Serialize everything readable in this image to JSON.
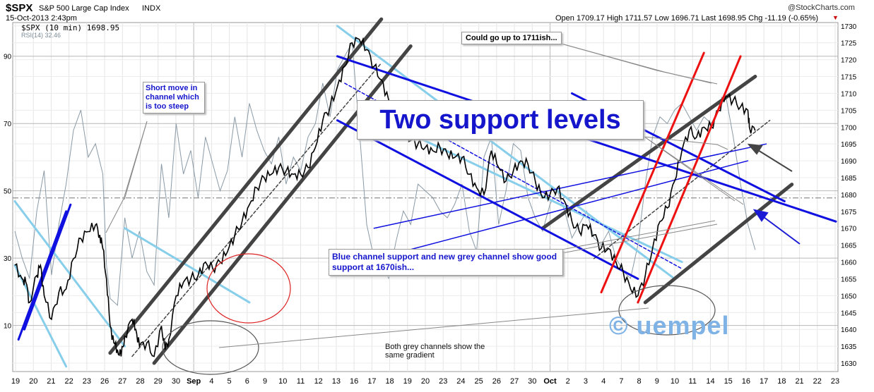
{
  "header": {
    "symbol": "$SPX",
    "name": "S&P 500 Large Cap Index",
    "exchange": "INDX",
    "datetime": "15-Oct-2013 2:43pm",
    "copyright": "@StockCharts.com",
    "quote_line": "Open 1709.17 High 1711.57 Low 1696.71 Last 1698.95 Chg -11.19 (-0.65%)",
    "legend_price": "$SPX (10 min) 1698.95",
    "legend_rsi": "RSI(14) 32.46"
  },
  "annotations": {
    "title_box": "Two support levels",
    "short_move": "Short move in channel which is too steep",
    "could_go": "Could go up to 1711ish...",
    "blue_channel_support": "Blue channel support and new grey channel show good support at 1670ish...",
    "grey_channels": "Both grey channels show the same gradient",
    "watermark": "© uempel"
  },
  "colors": {
    "price": "#000000",
    "rsi": "#8a9aa6",
    "blue_channel": "#1010e0",
    "light_blue_channel": "#87ceeb",
    "grey_channel": "#444444",
    "red_lines": "#ee1111",
    "annotation_text": "#1515cc",
    "watermark": "#7fb3e6"
  },
  "chart_data": {
    "type": "line",
    "title": "$SPX S&P 500 Large Cap Index INDX",
    "x_tick_labels": [
      "19",
      "20",
      "21",
      "22",
      "23",
      "26",
      "27",
      "28",
      "29",
      "30",
      "Sep",
      "4",
      "5",
      "6",
      "9",
      "10",
      "11",
      "12",
      "13",
      "16",
      "17",
      "18",
      "19",
      "20",
      "23",
      "24",
      "25",
      "26",
      "27",
      "30",
      "Oct",
      "2",
      "3",
      "4",
      "7",
      "8",
      "9",
      "10",
      "11",
      "14",
      "15",
      "16",
      "17",
      "18",
      "21",
      "22",
      "23"
    ],
    "y_right_ticks": [
      1630,
      1635,
      1640,
      1645,
      1650,
      1655,
      1660,
      1665,
      1670,
      1675,
      1680,
      1685,
      1690,
      1695,
      1700,
      1705,
      1710,
      1715,
      1720,
      1725,
      1730
    ],
    "y_left_ticks": [
      10,
      30,
      50,
      70,
      90
    ],
    "ylim_price": [
      1627.5,
      1731
    ],
    "ylim_rsi": [
      -3.7,
      100
    ],
    "series": [
      {
        "name": "$SPX (10 min)",
        "points": [
          [
            0,
            1659
          ],
          [
            1,
            1655
          ],
          [
            1.5,
            1654
          ],
          [
            2,
            1648
          ],
          [
            3,
            1656
          ],
          [
            3.5,
            1659
          ],
          [
            4,
            1650
          ],
          [
            5,
            1643
          ],
          [
            6,
            1651
          ],
          [
            7,
            1652
          ],
          [
            8,
            1661
          ],
          [
            9,
            1667
          ],
          [
            10,
            1669
          ],
          [
            11,
            1671
          ],
          [
            11.6,
            1668
          ],
          [
            12,
            1664
          ],
          [
            12.5,
            1655
          ],
          [
            13,
            1641
          ],
          [
            13.5,
            1636
          ],
          [
            14,
            1634
          ],
          [
            14.5,
            1632
          ],
          [
            15,
            1638
          ],
          [
            16,
            1643
          ],
          [
            16.5,
            1640
          ],
          [
            17,
            1635
          ],
          [
            18,
            1636
          ],
          [
            19,
            1632
          ],
          [
            20,
            1641
          ],
          [
            20.5,
            1634
          ],
          [
            21,
            1637
          ],
          [
            22,
            1650
          ],
          [
            23,
            1654
          ],
          [
            24,
            1655
          ],
          [
            25,
            1656
          ],
          [
            26,
            1660
          ],
          [
            27,
            1658
          ],
          [
            28,
            1660
          ],
          [
            29,
            1663
          ],
          [
            30,
            1668
          ],
          [
            31,
            1672
          ],
          [
            32,
            1677
          ],
          [
            33,
            1682
          ],
          [
            34,
            1685
          ],
          [
            35,
            1686
          ],
          [
            36,
            1688
          ],
          [
            37,
            1687
          ],
          [
            38,
            1686
          ],
          [
            39,
            1686
          ],
          [
            40,
            1688
          ],
          [
            41,
            1694
          ],
          [
            42,
            1702
          ],
          [
            43,
            1706
          ],
          [
            44,
            1712
          ],
          [
            45,
            1718
          ],
          [
            46,
            1725
          ],
          [
            47,
            1726
          ],
          [
            48,
            1723
          ],
          [
            49,
            1718
          ],
          [
            50,
            1714
          ],
          [
            51,
            1708
          ],
          [
            52,
            1701
          ],
          [
            53,
            1698
          ],
          [
            54,
            1696
          ],
          [
            55,
            1695
          ],
          [
            56,
            1694
          ],
          [
            57,
            1693
          ],
          [
            58,
            1694
          ],
          [
            59,
            1692
          ],
          [
            60,
            1691
          ],
          [
            61,
            1691
          ],
          [
            62,
            1686
          ],
          [
            63,
            1682
          ],
          [
            64,
            1680
          ],
          [
            65,
            1693
          ],
          [
            66,
            1688
          ],
          [
            67,
            1684
          ],
          [
            68,
            1687
          ],
          [
            69,
            1690
          ],
          [
            70,
            1689
          ],
          [
            71,
            1684
          ],
          [
            72,
            1679
          ],
          [
            73,
            1680
          ],
          [
            74,
            1682
          ],
          [
            75,
            1678
          ],
          [
            76,
            1672
          ],
          [
            77,
            1669
          ],
          [
            78,
            1671
          ],
          [
            79,
            1668
          ],
          [
            80,
            1664
          ],
          [
            81,
            1664
          ],
          [
            82,
            1660
          ],
          [
            83,
            1657
          ],
          [
            84,
            1652
          ],
          [
            85,
            1650
          ],
          [
            86,
            1656
          ],
          [
            87,
            1664
          ],
          [
            88,
            1672
          ],
          [
            89,
            1676
          ],
          [
            90,
            1684
          ],
          [
            91,
            1693
          ],
          [
            92,
            1699
          ],
          [
            93,
            1697
          ],
          [
            94,
            1700
          ],
          [
            95,
            1700
          ],
          [
            96,
            1705
          ],
          [
            97,
            1709
          ],
          [
            98,
            1708
          ],
          [
            99,
            1706
          ],
          [
            100,
            1705
          ],
          [
            100.2,
            1700
          ],
          [
            101,
            1698.95
          ]
        ]
      },
      {
        "name": "RSI(14)",
        "points": [
          [
            0,
            38
          ],
          [
            1,
            30
          ],
          [
            2,
            24
          ],
          [
            3,
            44
          ],
          [
            4,
            56
          ],
          [
            5,
            25
          ],
          [
            6,
            40
          ],
          [
            7,
            52
          ],
          [
            8,
            68
          ],
          [
            9,
            74
          ],
          [
            10,
            60
          ],
          [
            11,
            64
          ],
          [
            12,
            55
          ],
          [
            12.5,
            28
          ],
          [
            13,
            18
          ],
          [
            14,
            16
          ],
          [
            15,
            42
          ],
          [
            16,
            30
          ],
          [
            17,
            38
          ],
          [
            18,
            26
          ],
          [
            19,
            22
          ],
          [
            20,
            58
          ],
          [
            21,
            42
          ],
          [
            22,
            70
          ],
          [
            23,
            55
          ],
          [
            24,
            62
          ],
          [
            25,
            48
          ],
          [
            26,
            66
          ],
          [
            27,
            58
          ],
          [
            28,
            50
          ],
          [
            29,
            56
          ],
          [
            30,
            72
          ],
          [
            31,
            60
          ],
          [
            32,
            76
          ],
          [
            33,
            68
          ],
          [
            34,
            62
          ],
          [
            35,
            58
          ],
          [
            36,
            66
          ],
          [
            37,
            52
          ],
          [
            38,
            60
          ],
          [
            39,
            56
          ],
          [
            40,
            66
          ],
          [
            41,
            70
          ],
          [
            42,
            82
          ],
          [
            43,
            72
          ],
          [
            44,
            86
          ],
          [
            45,
            90
          ],
          [
            46,
            94
          ],
          [
            47,
            68
          ],
          [
            48,
            40
          ],
          [
            49,
            30
          ],
          [
            50,
            28
          ],
          [
            51,
            24
          ],
          [
            52,
            35
          ],
          [
            53,
            44
          ],
          [
            54,
            40
          ],
          [
            55,
            52
          ],
          [
            56,
            50
          ],
          [
            57,
            48
          ],
          [
            58,
            44
          ],
          [
            59,
            42
          ],
          [
            60,
            46
          ],
          [
            61,
            52
          ],
          [
            62,
            38
          ],
          [
            63,
            32
          ],
          [
            64,
            60
          ],
          [
            65,
            66
          ],
          [
            66,
            40
          ],
          [
            67,
            50
          ],
          [
            68,
            64
          ],
          [
            69,
            62
          ],
          [
            70,
            48
          ],
          [
            71,
            42
          ],
          [
            72,
            38
          ],
          [
            73,
            46
          ],
          [
            74,
            50
          ],
          [
            75,
            44
          ],
          [
            76,
            36
          ],
          [
            77,
            40
          ],
          [
            78,
            44
          ],
          [
            79,
            36
          ],
          [
            80,
            34
          ],
          [
            81,
            38
          ],
          [
            82,
            30
          ],
          [
            83,
            26
          ],
          [
            84,
            24
          ],
          [
            85,
            34
          ],
          [
            86,
            52
          ],
          [
            87,
            66
          ],
          [
            88,
            72
          ],
          [
            89,
            70
          ],
          [
            90,
            74
          ],
          [
            91,
            76
          ],
          [
            92,
            72
          ],
          [
            93,
            68
          ],
          [
            94,
            72
          ],
          [
            95,
            70
          ],
          [
            96,
            74
          ],
          [
            97,
            78
          ],
          [
            98,
            66
          ],
          [
            99,
            52
          ],
          [
            100,
            40
          ],
          [
            101,
            32.46
          ]
        ]
      }
    ],
    "annotation_lines": [
      {
        "group": "blue",
        "pts": [
          [
            0.5,
            1637
          ],
          [
            7,
            1675
          ]
        ]
      },
      {
        "group": "blue",
        "pts": [
          [
            1.3,
            1640
          ],
          [
            7.6,
            1677
          ]
        ]
      },
      {
        "group": "blue",
        "pts": [
          [
            44,
            1702
          ],
          [
            85,
            1655
          ]
        ]
      },
      {
        "group": "blue",
        "pts": [
          [
            44,
            1721
          ],
          [
            112,
            1672
          ]
        ]
      },
      {
        "group": "blue",
        "pts": [
          [
            76,
            1710
          ],
          [
            105,
            1678
          ]
        ]
      },
      {
        "group": "blue-thin",
        "pts": [
          [
            49,
            1670
          ],
          [
            102.5,
            1695
          ]
        ]
      },
      {
        "group": "blue-thin",
        "pts": [
          [
            51,
            1662
          ],
          [
            100,
            1690
          ]
        ]
      },
      {
        "group": "blue-dash",
        "pts": [
          [
            45,
            1713
          ],
          [
            91,
            1658
          ]
        ]
      },
      {
        "group": "lightblue",
        "pts": [
          [
            0,
            1678
          ],
          [
            15,
            1635
          ]
        ]
      },
      {
        "group": "lightblue",
        "pts": [
          [
            0,
            1659
          ],
          [
            7,
            1629
          ]
        ]
      },
      {
        "group": "lightblue",
        "pts": [
          [
            15,
            1670
          ],
          [
            32,
            1648
          ]
        ]
      },
      {
        "group": "lightblue",
        "pts": [
          [
            44,
            1730
          ],
          [
            90,
            1655
          ]
        ]
      },
      {
        "group": "lightblue",
        "pts": [
          [
            52,
            1700
          ],
          [
            91,
            1660
          ]
        ]
      },
      {
        "group": "grey",
        "pts": [
          [
            13,
            1633
          ],
          [
            50,
            1732
          ]
        ]
      },
      {
        "group": "grey",
        "pts": [
          [
            19,
            1630
          ],
          [
            54,
            1724
          ]
        ]
      },
      {
        "group": "grey",
        "pts": [
          [
            72,
            1670
          ],
          [
            101,
            1715
          ]
        ]
      },
      {
        "group": "grey",
        "pts": [
          [
            86,
            1648
          ],
          [
            106,
            1683
          ]
        ]
      },
      {
        "group": "grey-dash",
        "pts": [
          [
            16,
            1632
          ],
          [
            50,
            1719
          ]
        ]
      },
      {
        "group": "grey-dash",
        "pts": [
          [
            79,
            1661
          ],
          [
            103,
            1702
          ]
        ]
      },
      {
        "group": "red",
        "pts": [
          [
            80,
            1651
          ],
          [
            94,
            1722
          ]
        ]
      },
      {
        "group": "red",
        "pts": [
          [
            85,
            1648
          ],
          [
            99,
            1721
          ]
        ]
      }
    ]
  }
}
